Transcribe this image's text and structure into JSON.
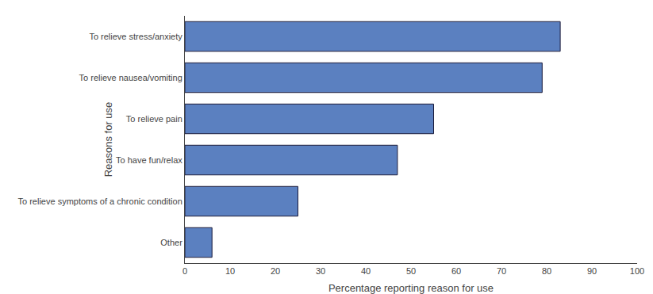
{
  "chart_data": {
    "type": "bar",
    "orientation": "horizontal",
    "categories": [
      "Other",
      "To relieve symptoms of a chronic condition",
      "To have fun/relax",
      "To relieve pain",
      "To relieve nausea/vomiting",
      "To relieve stress/anxiety"
    ],
    "values": [
      6,
      25,
      47,
      55,
      79,
      83
    ],
    "color": "#5b80c0",
    "xlabel": "Percentage reporting reason for use",
    "ylabel": "Reasons for use",
    "xlim": [
      0,
      100
    ],
    "xticks": [
      0,
      10,
      20,
      30,
      40,
      50,
      60,
      70,
      80,
      90,
      100
    ],
    "grid": false
  }
}
